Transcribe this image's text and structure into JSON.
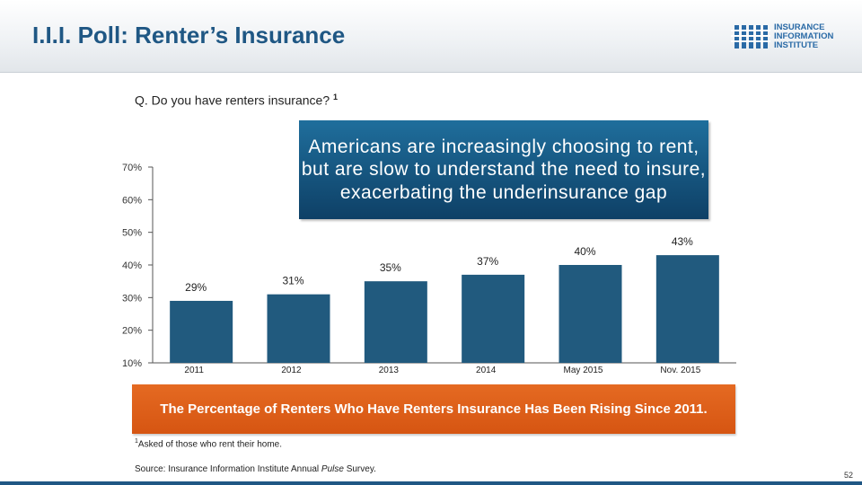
{
  "slide": {
    "title": "I.I.I. Poll: Renter’s Insurance",
    "logo_lines": [
      "INSURANCE",
      "INFORMATION",
      "INSTITUTE"
    ],
    "question": "Q. Do you have renters insurance?",
    "question_sup": "1",
    "callout": "Americans are increasingly choosing to rent, but are slow to understand the need to insure, exacerbating the underinsurance gap",
    "banner": "The Percentage of Renters Who Have Renters Insurance Has Been Rising Since 2011.",
    "footnote_sup": "1",
    "footnote": "Asked of those who rent their home.",
    "source_prefix": "Source: Insurance Information Institute Annual ",
    "source_italic": "Pulse",
    "source_suffix": " Survey.",
    "page_number": "52",
    "colors": {
      "title": "#1f5784",
      "bar": "#215a7e",
      "callout": "#14527f",
      "banner": "#e0601a"
    }
  },
  "chart_data": {
    "type": "bar",
    "categories": [
      "2011",
      "2012",
      "2013",
      "2014",
      "May 2015",
      "Nov. 2015"
    ],
    "values": [
      29,
      31,
      35,
      37,
      40,
      43
    ],
    "value_labels": [
      "29%",
      "31%",
      "35%",
      "37%",
      "40%",
      "43%"
    ],
    "yticks": [
      10,
      20,
      30,
      40,
      50,
      60,
      70
    ],
    "ytick_labels": [
      "10%",
      "20%",
      "30%",
      "40%",
      "50%",
      "60%",
      "70%"
    ],
    "ylim": [
      10,
      70
    ],
    "title": "",
    "xlabel": "",
    "ylabel": "",
    "grid": false,
    "legend": "none"
  }
}
